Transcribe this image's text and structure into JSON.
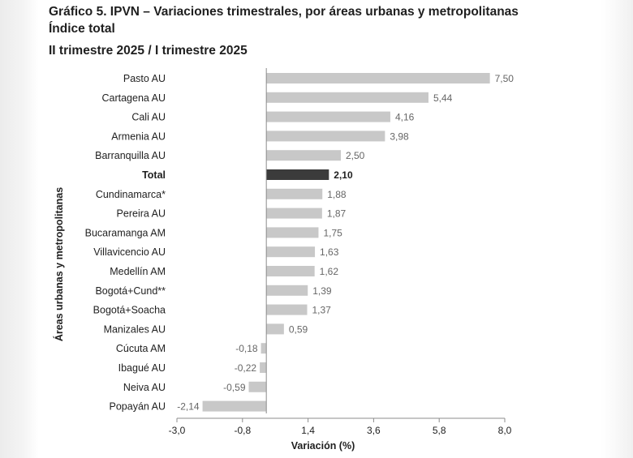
{
  "titles": {
    "line1": "Gráfico 5. IPVN – Variaciones trimestrales, por áreas urbanas y metropolitanas",
    "line2": "Índice total",
    "line3": "II trimestre 2025 / I trimestre 2025"
  },
  "colors": {
    "bar": "#c8c8c8",
    "highlight": "#3b3b3b",
    "text": "#1f1f1f",
    "value_text": "#666666",
    "axis": "#8c8c8c"
  },
  "chart_data": {
    "type": "bar",
    "orientation": "horizontal",
    "categories": [
      "Pasto AU",
      "Cartagena AU",
      "Cali AU",
      "Armenia AU",
      "Barranquilla AU",
      "Total",
      "Cundinamarca*",
      "Pereira AU",
      "Bucaramanga AM",
      "Villavicencio AU",
      "Medellín AM",
      "Bogotá+Cund**",
      "Bogotá+Soacha",
      "Manizales AU",
      "Cúcuta AM",
      "Ibagué AU",
      "Neiva AU",
      "Popayán AU"
    ],
    "values": [
      7.5,
      5.44,
      4.16,
      3.98,
      2.5,
      2.1,
      1.88,
      1.87,
      1.75,
      1.63,
      1.62,
      1.39,
      1.37,
      0.59,
      -0.18,
      -0.22,
      -0.59,
      -2.14
    ],
    "value_labels": [
      "7,50",
      "5,44",
      "4,16",
      "3,98",
      "2,50",
      "2,10",
      "1,88",
      "1,87",
      "1,75",
      "1,63",
      "1,62",
      "1,39",
      "1,37",
      "0,59",
      "-0,18",
      "-0,22",
      "-0,59",
      "-2,14"
    ],
    "highlight": "Total",
    "xlabel": "Variación (%)",
    "ylabel": "Áreas urbanas y metropolitanas",
    "xlim": [
      -3.0,
      8.0
    ],
    "xticks": [
      -3.0,
      -0.8,
      1.4,
      3.6,
      5.8,
      8.0
    ],
    "xtick_labels": [
      "-3,0",
      "-0,8",
      "1,4",
      "3,6",
      "5,8",
      "8,0"
    ],
    "grid": false,
    "legend": "none"
  }
}
